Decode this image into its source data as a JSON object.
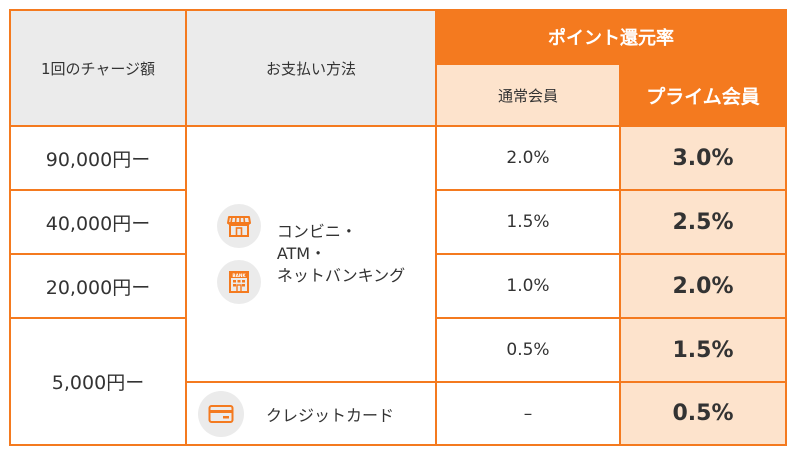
{
  "headers": {
    "charge_amount": "1回のチャージ額",
    "payment_method": "お支払い方法",
    "point_rate": "ポイント還元率",
    "regular_member": "通常会員",
    "prime_member": "プライム会員"
  },
  "rows": [
    {
      "amount": "90,000円ー",
      "regular": "2.0%",
      "prime": "3.0%"
    },
    {
      "amount": "40,000円ー",
      "regular": "1.5%",
      "prime": "2.5%"
    },
    {
      "amount": "20,000円ー",
      "regular": "1.0%",
      "prime": "2.0%"
    },
    {
      "amount": "5,000円ー",
      "regular": "0.5%",
      "prime": "1.5%"
    },
    {
      "amount": "",
      "regular": "–",
      "prime": "0.5%"
    }
  ],
  "methods": {
    "convenience": {
      "line1": "コンビニ・",
      "line2": "ATM・",
      "line3": "ネットバンキング",
      "store_icon": "store-icon",
      "bank_icon": "bank-icon",
      "bank_sign": "BANK"
    },
    "credit": {
      "label": "クレジットカード",
      "icon": "credit-card-icon"
    }
  },
  "colors": {
    "accent": "#f47a1f",
    "peach": "#fde3cc",
    "header_gray": "#ebebeb"
  }
}
